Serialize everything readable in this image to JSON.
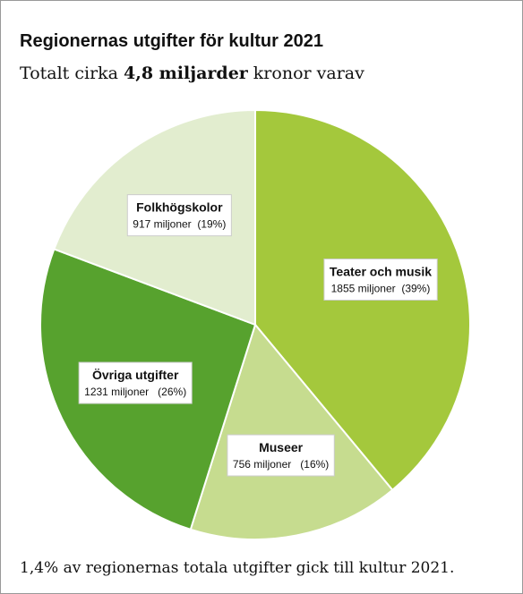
{
  "chart_data": {
    "type": "pie",
    "title": "Regionernas utgifter för kultur 2021",
    "subtitle": [
      "Totalt cirka",
      "4,8 miljarder",
      "kronor varav"
    ],
    "categories": [
      "Teater och musik",
      "Museer",
      "Övriga utgifter",
      "Folkhögskolor"
    ],
    "values": [
      1855,
      756,
      1231,
      917
    ],
    "value_labels": [
      "1855 miljoner  (39%)",
      "756 miljoner   (16%)",
      "1231 miljoner   (26%)",
      "917 miljoner  (19%)"
    ],
    "colors": [
      "#a4c83c",
      "#c6dc8f",
      "#57a22e",
      "#e2edcf"
    ],
    "note": "1,4% av regionernas totala utgifter gick till kultur 2021."
  }
}
